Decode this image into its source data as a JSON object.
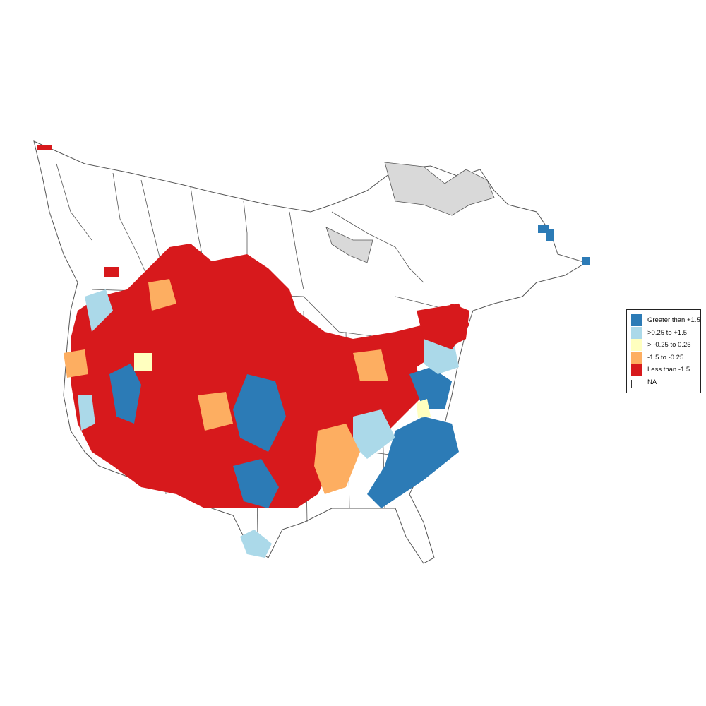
{
  "map": {
    "colors": {
      "greater_than_1_5": "#2c7bb6",
      "0_25_to_1_5": "#abd9e9",
      "neg0_25_to_0_25": "#ffffbf",
      "neg1_5_to_neg0_25": "#fdae61",
      "less_than_neg1_5": "#d7191c",
      "na": "#ffffff",
      "no_data_region": "#d9d9d9",
      "boundary": "#555555"
    }
  },
  "legend": {
    "items": [
      {
        "label": "Greater than +1.5",
        "color": "#2c7bb6"
      },
      {
        "label": ">0.25 to +1.5",
        "color": "#abd9e9"
      },
      {
        "label": "> -0.25 to 0.25",
        "color": "#ffffbf"
      },
      {
        "label": "-1.5 to -0.25",
        "color": "#fdae61"
      },
      {
        "label": "Less than -1.5",
        "color": "#d7191c"
      },
      {
        "label": "NA",
        "color": "#ffffff"
      }
    ]
  }
}
